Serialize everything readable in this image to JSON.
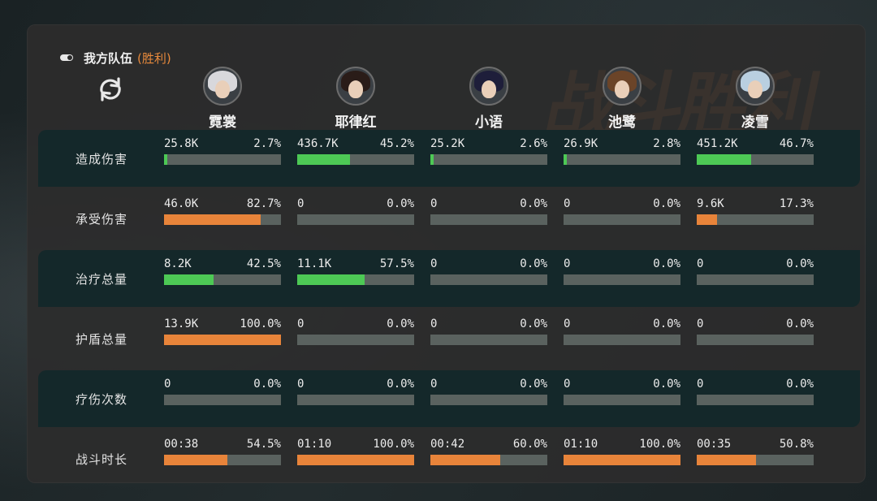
{
  "header": {
    "team": "我方队伍",
    "result": "(胜利)"
  },
  "watermark": "战斗胜利",
  "colors": {
    "damage_bar": "#4dc955",
    "taken_bar": "#e8843a",
    "accent": "#e88a3c"
  },
  "heroes": [
    {
      "name": "霓裳",
      "avatar": "avatar-nishang",
      "hair": "#d8d8dc"
    },
    {
      "name": "耶律红",
      "avatar": "avatar-yeluhong",
      "hair": "#2a1c18"
    },
    {
      "name": "小语",
      "avatar": "avatar-xiaoyu",
      "hair": "#1e1e3a"
    },
    {
      "name": "池鹭",
      "avatar": "avatar-chilu",
      "hair": "#6b4428"
    },
    {
      "name": "凌雪",
      "avatar": "avatar-lingxue",
      "hair": "#b9cfe0"
    }
  ],
  "stats": [
    {
      "label": "造成伤害",
      "color": "green",
      "band": true,
      "cells": [
        {
          "value": "25.8K",
          "pct": "2.7%",
          "fill": 0.027
        },
        {
          "value": "436.7K",
          "pct": "45.2%",
          "fill": 0.452
        },
        {
          "value": "25.2K",
          "pct": "2.6%",
          "fill": 0.026
        },
        {
          "value": "26.9K",
          "pct": "2.8%",
          "fill": 0.028
        },
        {
          "value": "451.2K",
          "pct": "46.7%",
          "fill": 0.467
        }
      ]
    },
    {
      "label": "承受伤害",
      "color": "orange",
      "band": false,
      "cells": [
        {
          "value": "46.0K",
          "pct": "82.7%",
          "fill": 0.827
        },
        {
          "value": "0",
          "pct": "0.0%",
          "fill": 0
        },
        {
          "value": "0",
          "pct": "0.0%",
          "fill": 0
        },
        {
          "value": "0",
          "pct": "0.0%",
          "fill": 0
        },
        {
          "value": "9.6K",
          "pct": "17.3%",
          "fill": 0.173
        }
      ]
    },
    {
      "label": "治疗总量",
      "color": "green",
      "band": true,
      "cells": [
        {
          "value": "8.2K",
          "pct": "42.5%",
          "fill": 0.425
        },
        {
          "value": "11.1K",
          "pct": "57.5%",
          "fill": 0.575
        },
        {
          "value": "0",
          "pct": "0.0%",
          "fill": 0
        },
        {
          "value": "0",
          "pct": "0.0%",
          "fill": 0
        },
        {
          "value": "0",
          "pct": "0.0%",
          "fill": 0
        }
      ]
    },
    {
      "label": "护盾总量",
      "color": "orange",
      "band": false,
      "cells": [
        {
          "value": "13.9K",
          "pct": "100.0%",
          "fill": 1.0
        },
        {
          "value": "0",
          "pct": "0.0%",
          "fill": 0
        },
        {
          "value": "0",
          "pct": "0.0%",
          "fill": 0
        },
        {
          "value": "0",
          "pct": "0.0%",
          "fill": 0
        },
        {
          "value": "0",
          "pct": "0.0%",
          "fill": 0
        }
      ]
    },
    {
      "label": "疗伤次数",
      "color": "green",
      "band": true,
      "cells": [
        {
          "value": "0",
          "pct": "0.0%",
          "fill": 0
        },
        {
          "value": "0",
          "pct": "0.0%",
          "fill": 0
        },
        {
          "value": "0",
          "pct": "0.0%",
          "fill": 0
        },
        {
          "value": "0",
          "pct": "0.0%",
          "fill": 0
        },
        {
          "value": "0",
          "pct": "0.0%",
          "fill": 0
        }
      ]
    },
    {
      "label": "战斗时长",
      "color": "orange",
      "band": false,
      "cells": [
        {
          "value": "00:38",
          "pct": "54.5%",
          "fill": 0.545
        },
        {
          "value": "01:10",
          "pct": "100.0%",
          "fill": 1.0
        },
        {
          "value": "00:42",
          "pct": "60.0%",
          "fill": 0.6
        },
        {
          "value": "01:10",
          "pct": "100.0%",
          "fill": 1.0
        },
        {
          "value": "00:35",
          "pct": "50.8%",
          "fill": 0.508
        }
      ]
    }
  ]
}
